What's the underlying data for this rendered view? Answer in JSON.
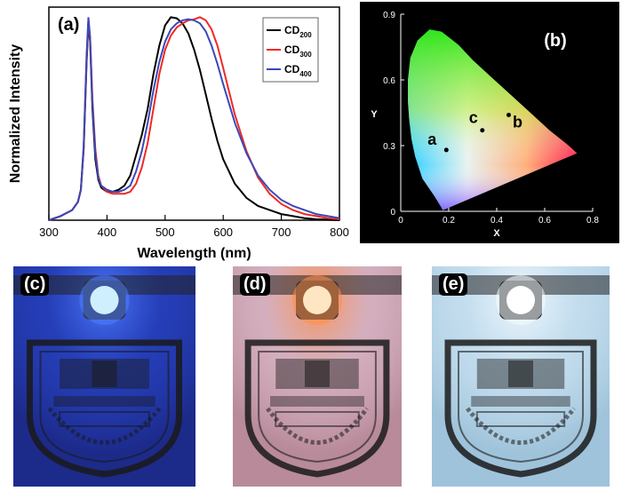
{
  "chart_data": [
    {
      "type": "line",
      "panel_label": "(a)",
      "xlabel": "Wavelength (nm)",
      "ylabel": "Normalized Intensity",
      "xlim": [
        300,
        800
      ],
      "xticks": [
        300,
        400,
        500,
        600,
        700,
        800
      ],
      "ylim": [
        0,
        1.05
      ],
      "grid": false,
      "legend_position": "top-right",
      "series": [
        {
          "name": "CD",
          "subscript": "200",
          "color": "#000000",
          "x": [
            300,
            320,
            340,
            350,
            355,
            360,
            365,
            368,
            371,
            375,
            380,
            385,
            390,
            400,
            410,
            420,
            430,
            440,
            450,
            460,
            470,
            480,
            490,
            500,
            510,
            520,
            530,
            540,
            550,
            560,
            570,
            580,
            590,
            600,
            620,
            640,
            660,
            680,
            700,
            720,
            740,
            760,
            780,
            800
          ],
          "y": [
            0.0,
            0.02,
            0.05,
            0.09,
            0.15,
            0.35,
            0.78,
            0.97,
            0.88,
            0.55,
            0.3,
            0.2,
            0.16,
            0.14,
            0.14,
            0.15,
            0.17,
            0.22,
            0.32,
            0.42,
            0.55,
            0.72,
            0.86,
            0.96,
            1.0,
            0.995,
            0.97,
            0.92,
            0.84,
            0.74,
            0.62,
            0.5,
            0.39,
            0.3,
            0.18,
            0.11,
            0.07,
            0.05,
            0.03,
            0.02,
            0.01,
            0.005,
            0.002,
            0.0
          ]
        },
        {
          "name": "CD",
          "subscript": "300",
          "color": "#ee2a24",
          "x": [
            300,
            320,
            340,
            350,
            355,
            360,
            365,
            368,
            371,
            375,
            380,
            385,
            390,
            400,
            410,
            420,
            430,
            440,
            450,
            460,
            470,
            480,
            490,
            500,
            510,
            520,
            530,
            540,
            550,
            560,
            570,
            580,
            590,
            600,
            620,
            640,
            660,
            680,
            700,
            720,
            740,
            760,
            780,
            800
          ],
          "y": [
            0.0,
            0.02,
            0.05,
            0.09,
            0.15,
            0.36,
            0.8,
            0.98,
            0.9,
            0.6,
            0.35,
            0.22,
            0.17,
            0.14,
            0.13,
            0.13,
            0.13,
            0.14,
            0.18,
            0.26,
            0.38,
            0.55,
            0.72,
            0.84,
            0.91,
            0.95,
            0.97,
            0.985,
            0.99,
            1.0,
            0.985,
            0.94,
            0.86,
            0.75,
            0.52,
            0.34,
            0.21,
            0.13,
            0.08,
            0.05,
            0.03,
            0.02,
            0.01,
            0.005
          ]
        },
        {
          "name": "CD",
          "subscript": "400",
          "color": "#3b48b8",
          "x": [
            300,
            320,
            340,
            350,
            355,
            360,
            365,
            368,
            371,
            375,
            380,
            385,
            390,
            400,
            410,
            420,
            430,
            440,
            450,
            460,
            470,
            480,
            490,
            500,
            510,
            520,
            530,
            540,
            550,
            560,
            570,
            580,
            590,
            600,
            620,
            640,
            660,
            680,
            700,
            720,
            740,
            760,
            780,
            800
          ],
          "y": [
            0.0,
            0.02,
            0.05,
            0.09,
            0.15,
            0.37,
            0.82,
            1.0,
            0.9,
            0.58,
            0.33,
            0.21,
            0.17,
            0.15,
            0.14,
            0.14,
            0.15,
            0.17,
            0.24,
            0.34,
            0.48,
            0.64,
            0.78,
            0.88,
            0.94,
            0.97,
            0.985,
            0.99,
            0.985,
            0.97,
            0.93,
            0.86,
            0.77,
            0.67,
            0.48,
            0.33,
            0.22,
            0.15,
            0.1,
            0.07,
            0.05,
            0.03,
            0.02,
            0.01
          ]
        }
      ]
    },
    {
      "type": "scatter",
      "panel_label": "(b)",
      "xlabel": "X",
      "ylabel": "Y",
      "xlim": [
        0,
        0.8
      ],
      "ylim": [
        0,
        0.9
      ],
      "xticks": [
        0,
        0.2,
        0.4,
        0.6,
        0.8
      ],
      "yticks": [
        0,
        0.3,
        0.6,
        0.9
      ],
      "xtick_labels": [
        "0",
        "0.2",
        "0.4",
        "0.6",
        "0.8"
      ],
      "ytick_labels": [
        "0",
        "0.3",
        "0.6",
        "0.9"
      ],
      "background": "#000000",
      "locus": [
        [
          0.175,
          0.005
        ],
        [
          0.168,
          0.02
        ],
        [
          0.14,
          0.07
        ],
        [
          0.09,
          0.15
        ],
        [
          0.06,
          0.25
        ],
        [
          0.045,
          0.33
        ],
        [
          0.035,
          0.42
        ],
        [
          0.03,
          0.5
        ],
        [
          0.03,
          0.6
        ],
        [
          0.04,
          0.7
        ],
        [
          0.07,
          0.78
        ],
        [
          0.12,
          0.83
        ],
        [
          0.17,
          0.82
        ],
        [
          0.24,
          0.76
        ],
        [
          0.3,
          0.69
        ],
        [
          0.37,
          0.62
        ],
        [
          0.45,
          0.54
        ],
        [
          0.53,
          0.46
        ],
        [
          0.62,
          0.37
        ],
        [
          0.7,
          0.3
        ],
        [
          0.735,
          0.265
        ],
        [
          0.175,
          0.005
        ]
      ],
      "points": [
        {
          "label": "a",
          "x": 0.19,
          "y": 0.28
        },
        {
          "label": "b",
          "x": 0.45,
          "y": 0.44
        },
        {
          "label": "c",
          "x": 0.34,
          "y": 0.37
        }
      ]
    }
  ],
  "photos": [
    {
      "label": "(c)",
      "led_color": "#cfefff",
      "bg_color": "#1c2a8a",
      "glow_color": "#4f7dff",
      "tint": "#2b4bd6"
    },
    {
      "label": "(d)",
      "led_color": "#ffe6c2",
      "bg_color": "#b88a9a",
      "glow_color": "#ff8f4a",
      "tint": "#e6c7d6"
    },
    {
      "label": "(e)",
      "led_color": "#ffffff",
      "bg_color": "#9fc3da",
      "glow_color": "#f4fbff",
      "tint": "#dbeefb"
    }
  ]
}
